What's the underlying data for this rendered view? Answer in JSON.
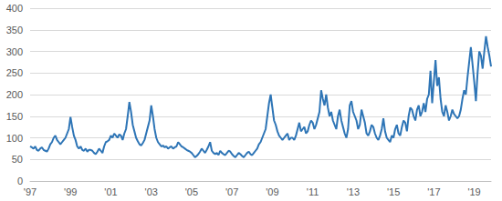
{
  "chart_data": {
    "type": "line",
    "color": "#2e75b6",
    "grid": true,
    "ylim": [
      0,
      400
    ],
    "yticks": [
      0,
      50,
      100,
      150,
      200,
      250,
      300,
      350,
      400
    ],
    "categories": [
      "'97",
      null,
      null,
      null,
      null,
      null,
      null,
      null,
      null,
      null,
      null,
      null,
      null,
      null,
      null,
      null,
      null,
      null,
      null,
      null,
      null,
      null,
      null,
      null,
      "'99",
      null,
      null,
      null,
      null,
      null,
      null,
      null,
      null,
      null,
      null,
      null,
      null,
      null,
      null,
      null,
      null,
      null,
      null,
      null,
      null,
      null,
      null,
      null,
      "'01",
      null,
      null,
      null,
      null,
      null,
      null,
      null,
      null,
      null,
      null,
      null,
      null,
      null,
      null,
      null,
      null,
      null,
      null,
      null,
      null,
      null,
      null,
      null,
      "'03",
      null,
      null,
      null,
      null,
      null,
      null,
      null,
      null,
      null,
      null,
      null,
      null,
      null,
      null,
      null,
      null,
      null,
      null,
      null,
      null,
      null,
      null,
      null,
      "'05",
      null,
      null,
      null,
      null,
      null,
      null,
      null,
      null,
      null,
      null,
      null,
      null,
      null,
      null,
      null,
      null,
      null,
      null,
      null,
      null,
      null,
      null,
      null,
      "'07",
      null,
      null,
      null,
      null,
      null,
      null,
      null,
      null,
      null,
      null,
      null,
      null,
      null,
      null,
      null,
      null,
      null,
      null,
      null,
      null,
      null,
      null,
      null,
      "'09",
      null,
      null,
      null,
      null,
      null,
      null,
      null,
      null,
      null,
      null,
      null,
      null,
      null,
      null,
      null,
      null,
      null,
      null,
      null,
      null,
      null,
      null,
      null,
      "'11",
      null,
      null,
      null,
      null,
      null,
      null,
      null,
      null,
      null,
      null,
      null,
      null,
      null,
      null,
      null,
      null,
      null,
      null,
      null,
      null,
      null,
      null,
      null,
      "'13",
      null,
      null,
      null,
      null,
      null,
      null,
      null,
      null,
      null,
      null,
      null,
      null,
      null,
      null,
      null,
      null,
      null,
      null,
      null,
      null,
      null,
      null,
      null,
      "'15",
      null,
      null,
      null,
      null,
      null,
      null,
      null,
      null,
      null,
      null,
      null,
      null,
      null,
      null,
      null,
      null,
      null,
      null,
      null,
      null,
      null,
      null,
      null,
      "'17",
      null,
      null,
      null,
      null,
      null,
      null,
      null,
      null,
      null,
      null,
      null,
      null,
      null,
      null,
      null,
      null,
      null,
      null,
      null,
      null,
      null,
      null,
      null,
      "'19",
      null,
      null,
      null,
      null,
      null,
      null,
      null,
      null,
      null,
      null
    ],
    "values": [
      80,
      78,
      75,
      80,
      72,
      70,
      75,
      78,
      72,
      70,
      68,
      75,
      85,
      90,
      100,
      105,
      95,
      90,
      85,
      90,
      95,
      100,
      110,
      120,
      148,
      125,
      105,
      95,
      80,
      75,
      80,
      72,
      70,
      75,
      68,
      72,
      72,
      70,
      65,
      62,
      68,
      75,
      70,
      65,
      80,
      90,
      92,
      95,
      105,
      100,
      110,
      105,
      100,
      108,
      105,
      95,
      110,
      120,
      150,
      183,
      160,
      130,
      115,
      100,
      92,
      85,
      82,
      88,
      95,
      110,
      125,
      140,
      175,
      150,
      120,
      100,
      90,
      85,
      80,
      82,
      78,
      80,
      75,
      78,
      80,
      75,
      78,
      80,
      90,
      85,
      80,
      78,
      75,
      72,
      70,
      68,
      65,
      60,
      55,
      58,
      62,
      68,
      75,
      70,
      65,
      72,
      80,
      90,
      70,
      65,
      62,
      65,
      60,
      70,
      65,
      62,
      60,
      65,
      70,
      68,
      62,
      58,
      55,
      60,
      65,
      62,
      58,
      55,
      60,
      65,
      68,
      62,
      60,
      65,
      70,
      75,
      85,
      90,
      100,
      110,
      120,
      150,
      180,
      200,
      170,
      140,
      130,
      115,
      105,
      100,
      95,
      100,
      105,
      110,
      95,
      100,
      100,
      95,
      105,
      120,
      135,
      115,
      120,
      125,
      110,
      115,
      130,
      140,
      135,
      120,
      130,
      145,
      160,
      210,
      190,
      175,
      200,
      170,
      150,
      160,
      140,
      130,
      120,
      150,
      165,
      140,
      125,
      110,
      100,
      120,
      175,
      185,
      160,
      150,
      140,
      120,
      130,
      165,
      150,
      135,
      110,
      105,
      115,
      130,
      125,
      110,
      100,
      95,
      105,
      120,
      145,
      115,
      100,
      95,
      90,
      105,
      100,
      120,
      130,
      110,
      105,
      125,
      140,
      135,
      115,
      150,
      170,
      165,
      150,
      140,
      165,
      175,
      150,
      160,
      180,
      160,
      190,
      200,
      255,
      180,
      230,
      280,
      220,
      240,
      190,
      160,
      150,
      175,
      160,
      140,
      150,
      165,
      155,
      150,
      145,
      150,
      165,
      190,
      210,
      200,
      240,
      275,
      310,
      270,
      230,
      185,
      250,
      300,
      290,
      260,
      300,
      335,
      310,
      290,
      265
    ]
  }
}
